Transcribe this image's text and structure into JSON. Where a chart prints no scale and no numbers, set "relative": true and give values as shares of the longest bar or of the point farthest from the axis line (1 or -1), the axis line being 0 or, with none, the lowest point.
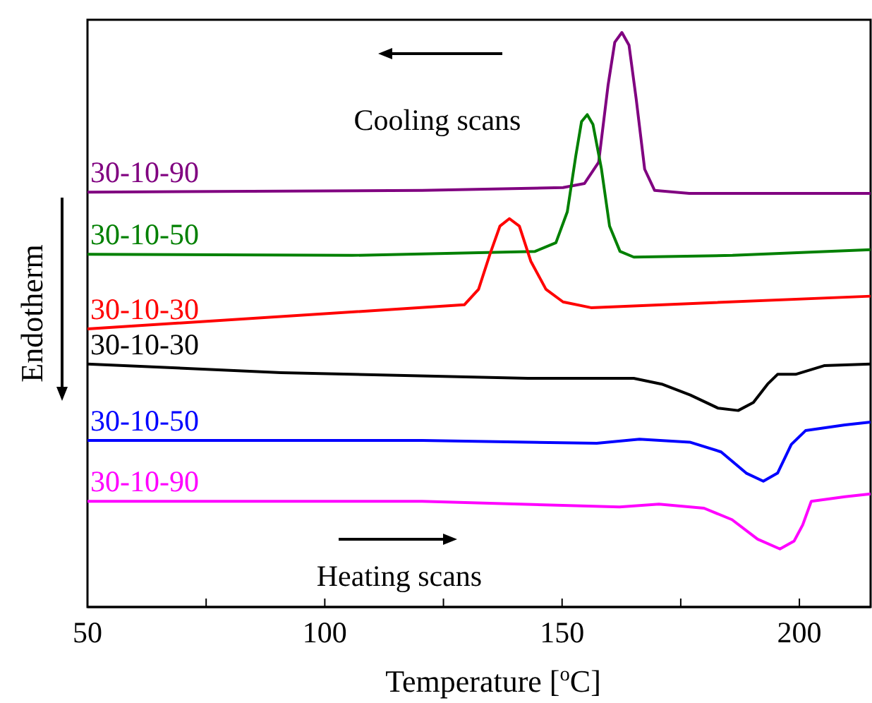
{
  "chart_data": {
    "type": "line",
    "relative": true,
    "xlabel": "Temperature [$^{o}$C]",
    "ylabel": "Endotherm",
    "xlim": [
      50,
      215
    ],
    "xticks": [
      50,
      {
        "value": 75,
        "label": null
      },
      100,
      {
        "value": 125,
        "label": null
      },
      150,
      {
        "value": 175,
        "label": null
      },
      200
    ],
    "annotations": [
      "Cooling scans",
      "Heating scans"
    ],
    "legend": false,
    "grid": false,
    "marker": "none",
    "line_style": "solid",
    "series": [
      {
        "name": "30-10-90",
        "color": "#800080",
        "x": [
          50,
          120.5,
          150.2,
          154.7,
          157.7,
          159.7,
          161.1,
          162.6,
          164.1,
          165.6,
          167.4,
          169.5,
          176.8,
          215
        ],
        "values": [
          0.722,
          0.725,
          0.73,
          0.737,
          0.774,
          0.909,
          0.983,
          1,
          0.978,
          0.885,
          0.762,
          0.725,
          0.72,
          0.72
        ]
      },
      {
        "name": "30-10-50",
        "color": "#008000",
        "x": [
          50,
          105.7,
          144.3,
          148.7,
          151.1,
          152.9,
          154.1,
          155.3,
          156.5,
          158.3,
          160,
          162.2,
          165.1,
          185.9,
          215
        ],
        "values": [
          0.614,
          0.612,
          0.619,
          0.634,
          0.688,
          0.786,
          0.845,
          0.857,
          0.84,
          0.762,
          0.663,
          0.619,
          0.609,
          0.612,
          0.622
        ]
      },
      {
        "name": "30-10-30",
        "color": "#ff0000",
        "x": [
          50,
          129.4,
          132.4,
          134.8,
          136.9,
          138.9,
          141,
          143.4,
          146.6,
          150.2,
          156.1,
          215
        ],
        "values": [
          0.484,
          0.526,
          0.553,
          0.614,
          0.663,
          0.676,
          0.663,
          0.602,
          0.553,
          0.531,
          0.521,
          0.541
        ]
      },
      {
        "name": "30-10-30",
        "color": "#000000",
        "x": [
          50,
          90.8,
          142.8,
          165.1,
          171,
          177,
          182.9,
          187.1,
          190.3,
          193.3,
          195.4,
          199.2,
          205.2,
          215
        ],
        "values": [
          0.423,
          0.408,
          0.398,
          0.398,
          0.388,
          0.369,
          0.346,
          0.342,
          0.356,
          0.388,
          0.405,
          0.405,
          0.42,
          0.423
        ]
      },
      {
        "name": "30-10-50",
        "color": "#0000ff",
        "x": [
          50,
          120.5,
          157.3,
          166.3,
          176.9,
          183.5,
          188.8,
          192.4,
          195.4,
          198.3,
          201.3,
          209.6,
          215
        ],
        "values": [
          0.29,
          0.29,
          0.285,
          0.292,
          0.287,
          0.27,
          0.233,
          0.219,
          0.233,
          0.283,
          0.307,
          0.317,
          0.322
        ]
      },
      {
        "name": "30-10-90",
        "color": "#ff00ff",
        "x": [
          50,
          120.5,
          162.1,
          170.4,
          179.9,
          185.8,
          191.2,
          195.9,
          198.9,
          200.7,
          202.5,
          209.6,
          215
        ],
        "values": [
          0.184,
          0.184,
          0.174,
          0.179,
          0.172,
          0.152,
          0.118,
          0.101,
          0.115,
          0.143,
          0.184,
          0.192,
          0.197
        ]
      }
    ]
  }
}
